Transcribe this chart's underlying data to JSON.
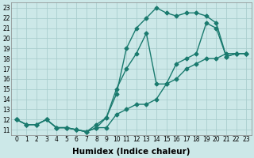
{
  "xlabel": "Humidex (Indice chaleur)",
  "bg_color": "#cce8e8",
  "line_color": "#1a7a6e",
  "grid_color": "#aacece",
  "xlim": [
    -0.5,
    23.5
  ],
  "ylim": [
    10.5,
    23.5
  ],
  "xticks": [
    0,
    1,
    2,
    3,
    4,
    5,
    6,
    7,
    8,
    9,
    10,
    11,
    12,
    13,
    14,
    15,
    16,
    17,
    18,
    19,
    20,
    21,
    22,
    23
  ],
  "yticks": [
    11,
    12,
    13,
    14,
    15,
    16,
    17,
    18,
    19,
    20,
    21,
    22,
    23
  ],
  "series1_x": [
    0,
    1,
    2,
    3,
    4,
    5,
    6,
    7,
    8,
    9,
    10,
    11,
    12,
    13,
    14,
    15,
    16,
    17,
    18,
    19,
    20,
    21,
    22,
    23
  ],
  "series1_y": [
    12.0,
    11.5,
    11.5,
    12.0,
    11.2,
    11.2,
    11.0,
    10.8,
    11.2,
    11.2,
    12.5,
    13.0,
    13.5,
    13.5,
    14.0,
    15.5,
    16.0,
    17.0,
    17.5,
    18.0,
    18.0,
    18.5,
    18.5,
    18.5
  ],
  "series2_x": [
    0,
    1,
    2,
    3,
    4,
    5,
    6,
    7,
    8,
    9,
    10,
    11,
    12,
    13,
    14,
    15,
    16,
    17,
    18,
    19,
    20,
    21,
    22,
    23
  ],
  "series2_y": [
    12.0,
    11.5,
    11.5,
    12.0,
    11.2,
    11.2,
    11.0,
    10.8,
    11.5,
    12.2,
    15.0,
    17.0,
    18.5,
    20.5,
    15.5,
    15.5,
    17.5,
    18.0,
    18.5,
    21.5,
    21.0,
    18.2,
    18.5,
    18.5
  ],
  "series3_x": [
    0,
    1,
    2,
    3,
    4,
    5,
    6,
    7,
    8,
    9,
    10,
    11,
    12,
    13,
    14,
    15,
    16,
    17,
    18,
    19,
    20,
    21,
    22,
    23
  ],
  "series3_y": [
    12.0,
    11.5,
    11.5,
    12.0,
    11.2,
    11.2,
    11.0,
    10.8,
    11.2,
    12.2,
    14.5,
    19.0,
    21.0,
    22.0,
    23.0,
    22.5,
    22.2,
    22.5,
    22.5,
    22.2,
    21.5,
    18.2,
    18.5,
    18.5
  ],
  "marker": "D",
  "marker_size": 2.5,
  "line_width": 1.0,
  "tick_fontsize": 5.5,
  "xlabel_fontsize": 7.5
}
